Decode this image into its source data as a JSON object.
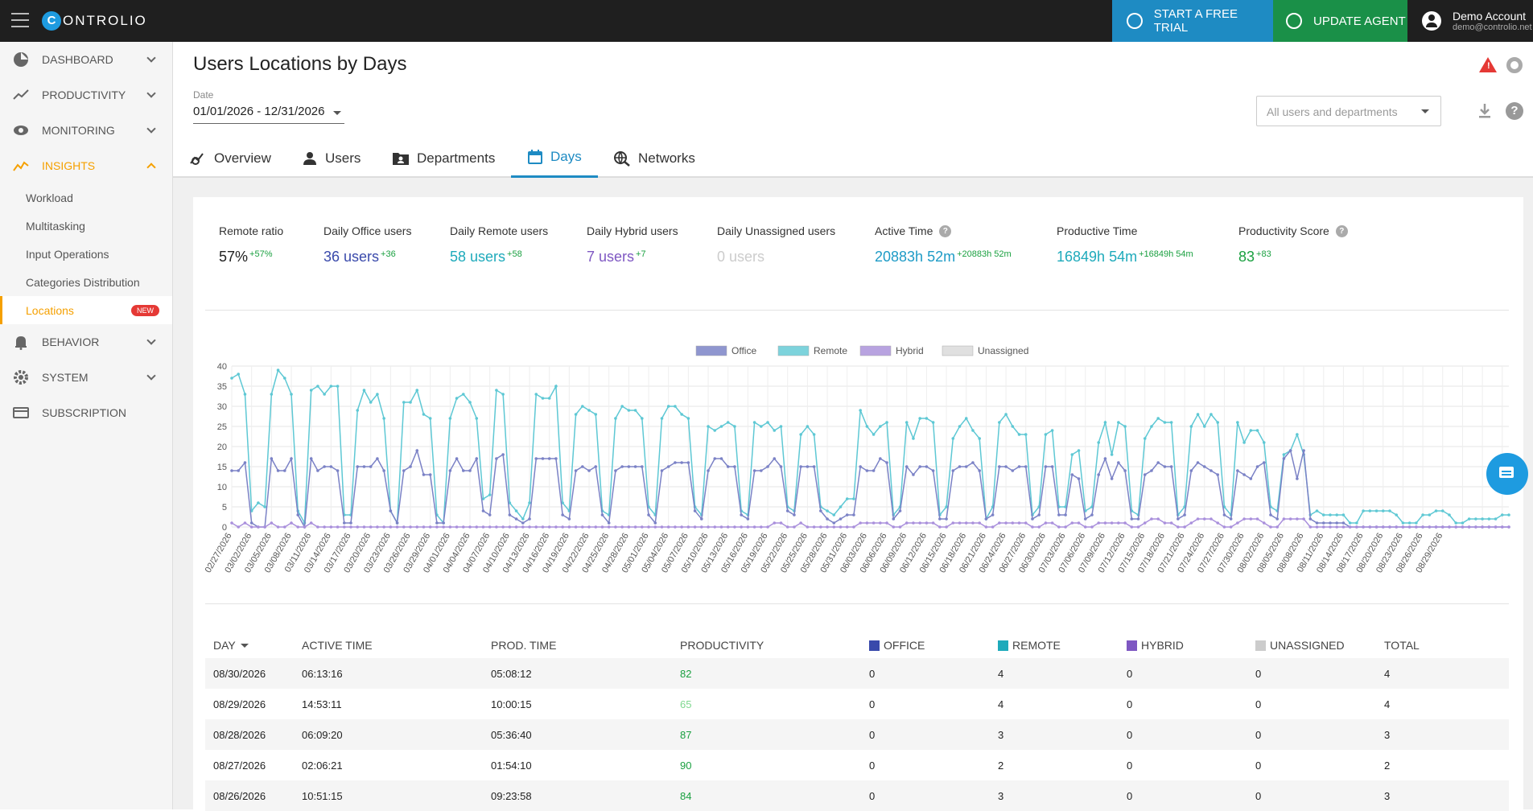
{
  "app": {
    "logo_letter": "C",
    "logo_text": "ONTROLIO"
  },
  "topbar": {
    "trial_label": "START A FREE TRIAL",
    "agent_label": "UPDATE AGENT",
    "account_name": "Demo Account",
    "account_email": "demo@controlio.net"
  },
  "sidebar": {
    "items": [
      {
        "label": "DASHBOARD",
        "icon": "pie-chart-icon"
      },
      {
        "label": "PRODUCTIVITY",
        "icon": "trending-icon"
      },
      {
        "label": "MONITORING",
        "icon": "eye-icon"
      },
      {
        "label": "INSIGHTS",
        "icon": "insights-icon"
      }
    ],
    "insights_sub": [
      "Workload",
      "Multitasking",
      "Input Operations",
      "Categories Distribution",
      "Locations"
    ],
    "new_badge": "NEW",
    "bottom_items": [
      {
        "label": "BEHAVIOR",
        "icon": "bell-icon"
      },
      {
        "label": "SYSTEM",
        "icon": "gear-icon"
      },
      {
        "label": "SUBSCRIPTION",
        "icon": "card-icon"
      }
    ]
  },
  "header": {
    "title": "Users Locations by Days",
    "date_label": "Date",
    "date_value": "01/01/2026 - 12/31/2026",
    "filter_placeholder": "All users and departments"
  },
  "tabs": [
    {
      "label": "Overview",
      "icon": "overview-icon"
    },
    {
      "label": "Users",
      "icon": "user-icon"
    },
    {
      "label": "Departments",
      "icon": "folder-icon"
    },
    {
      "label": "Days",
      "icon": "calendar-icon"
    },
    {
      "label": "Networks",
      "icon": "network-icon"
    }
  ],
  "stats": [
    {
      "label": "Remote ratio",
      "value": "57%",
      "delta": "+57%",
      "color": "#222222"
    },
    {
      "label": "Daily Office users",
      "value": "36 users",
      "delta": "+36",
      "color": "#3949ab"
    },
    {
      "label": "Daily Remote users",
      "value": "58 users",
      "delta": "+58",
      "color": "#1eaabb"
    },
    {
      "label": "Daily Hybrid users",
      "value": "7 users",
      "delta": "+7",
      "color": "#7e57c2"
    },
    {
      "label": "Daily Unassigned users",
      "value": "0 users",
      "delta": "",
      "color": "#cccccc"
    },
    {
      "label": "Active Time",
      "value": "20883h 52m",
      "delta": "+20883h 52m",
      "color": "#1e9bc6"
    },
    {
      "label": "Productive Time",
      "value": "16849h 54m",
      "delta": "+16849h 54m",
      "color": "#1eaabb"
    },
    {
      "label": "Productivity Score",
      "value": "83",
      "delta": "+83",
      "color": "#1aa040"
    }
  ],
  "chart_data": {
    "type": "line",
    "legend": [
      "Office",
      "Remote",
      "Hybrid",
      "Unassigned"
    ],
    "legend_placement": "top-center",
    "colors": {
      "Office": "#8f96cf",
      "Remote": "#7dd3dc",
      "Hybrid": "#b8a3e0",
      "Unassigned": "#e0e0e0"
    },
    "ylim": [
      0,
      40
    ],
    "yticks": [
      0,
      5,
      10,
      15,
      20,
      25,
      30,
      35,
      40
    ],
    "grid": true,
    "xtick_labels": [
      "02/27/2026",
      "03/02/2026",
      "03/05/2026",
      "03/08/2026",
      "03/11/2026",
      "03/14/2026",
      "03/17/2026",
      "03/20/2026",
      "03/23/2026",
      "03/26/2026",
      "03/29/2026",
      "04/01/2026",
      "04/04/2026",
      "04/07/2026",
      "04/10/2026",
      "04/13/2026",
      "04/16/2026",
      "04/19/2026",
      "04/22/2026",
      "04/25/2026",
      "04/28/2026",
      "05/01/2026",
      "05/04/2026",
      "05/07/2026",
      "05/10/2026",
      "05/13/2026",
      "05/16/2026",
      "05/19/2026",
      "05/22/2026",
      "05/25/2026",
      "05/28/2026",
      "05/31/2026",
      "06/03/2026",
      "06/06/2026",
      "06/09/2026",
      "06/12/2026",
      "06/15/2026",
      "06/18/2026",
      "06/21/2026",
      "06/24/2026",
      "06/27/2026",
      "06/30/2026",
      "07/03/2026",
      "07/06/2026",
      "07/09/2026",
      "07/12/2026",
      "07/15/2026",
      "07/18/2026",
      "07/21/2026",
      "07/24/2026",
      "07/27/2026",
      "07/30/2026",
      "08/02/2026",
      "08/05/2026",
      "08/08/2026",
      "08/11/2026",
      "08/14/2026",
      "08/17/2026",
      "08/20/2026",
      "08/23/2026",
      "08/26/2026",
      "08/29/2026"
    ],
    "series": [
      {
        "name": "Remote",
        "values": [
          37,
          38,
          33,
          4,
          6,
          5,
          33,
          39,
          37,
          33,
          4,
          1,
          34,
          35,
          33,
          35,
          35,
          3,
          3,
          29,
          34,
          31,
          33,
          27,
          4,
          1,
          31,
          31,
          34,
          28,
          27,
          3,
          1,
          27,
          32,
          33,
          31,
          27,
          7,
          8,
          34,
          33,
          6,
          4,
          2,
          6,
          33,
          32,
          32,
          35,
          6,
          4,
          28,
          30,
          29,
          28,
          4,
          3,
          27,
          30,
          29,
          29,
          27,
          5,
          3,
          27,
          30,
          30,
          28,
          27,
          5,
          3,
          25,
          24,
          25,
          26,
          25,
          4,
          3,
          26,
          25,
          26,
          24,
          25,
          5,
          4,
          23,
          25,
          23,
          5,
          4,
          3,
          5,
          7,
          7,
          29,
          25,
          23,
          25,
          26,
          3,
          5,
          26,
          22,
          27,
          27,
          26,
          3,
          5,
          22,
          25,
          27,
          24,
          22,
          2,
          5,
          26,
          28,
          25,
          23,
          23,
          3,
          5,
          23,
          24,
          5,
          5,
          18,
          19,
          4,
          5,
          21,
          26,
          18,
          26,
          25,
          4,
          3,
          22,
          25,
          27,
          26,
          26,
          3,
          5,
          25,
          28,
          25,
          28,
          26,
          5,
          3,
          26,
          21,
          24,
          24,
          21,
          5,
          4,
          18,
          19,
          23,
          18,
          3,
          4,
          3,
          3,
          3,
          3,
          1,
          1,
          4,
          4,
          4,
          4,
          4,
          3,
          1,
          1,
          1,
          3,
          3,
          4,
          4,
          3,
          1,
          1,
          2,
          2,
          2,
          2,
          2,
          3,
          3
        ]
      },
      {
        "name": "Office",
        "values": [
          14,
          14,
          16,
          1,
          0,
          0,
          17,
          14,
          14,
          17,
          3,
          0,
          17,
          14,
          15,
          15,
          14,
          1,
          1,
          15,
          15,
          15,
          17,
          14,
          4,
          1,
          14,
          15,
          19,
          13,
          13,
          1,
          1,
          14,
          17,
          14,
          14,
          17,
          4,
          3,
          17,
          18,
          3,
          2,
          1,
          2,
          17,
          17,
          17,
          17,
          3,
          2,
          14,
          15,
          14,
          15,
          3,
          1,
          14,
          15,
          15,
          15,
          15,
          3,
          1,
          14,
          15,
          16,
          16,
          16,
          4,
          2,
          14,
          17,
          17,
          15,
          15,
          3,
          2,
          14,
          14,
          15,
          17,
          15,
          4,
          3,
          15,
          15,
          15,
          4,
          2,
          1,
          2,
          3,
          3,
          15,
          14,
          14,
          17,
          16,
          2,
          4,
          15,
          13,
          15,
          15,
          14,
          2,
          2,
          14,
          15,
          15,
          16,
          14,
          2,
          3,
          15,
          15,
          14,
          15,
          15,
          2,
          3,
          15,
          15,
          3,
          3,
          13,
          12,
          2,
          3,
          13,
          17,
          12,
          16,
          14,
          2,
          2,
          13,
          14,
          16,
          15,
          15,
          2,
          3,
          14,
          16,
          15,
          14,
          13,
          3,
          2,
          14,
          13,
          12,
          15,
          16,
          3,
          2,
          17,
          19,
          12,
          19,
          2,
          1,
          1,
          1,
          1,
          1,
          0,
          0,
          0,
          0,
          0,
          0,
          0,
          0,
          0,
          0,
          0,
          0,
          0,
          0,
          0,
          0,
          0,
          0,
          0,
          0,
          0,
          0,
          0,
          0,
          0
        ]
      },
      {
        "name": "Hybrid",
        "values": [
          1,
          0,
          1,
          0,
          0,
          0,
          1,
          0,
          0,
          1,
          0,
          0,
          1,
          0,
          0,
          0,
          0,
          0,
          0,
          0,
          0,
          0,
          0,
          0,
          0,
          0,
          0,
          0,
          0,
          0,
          0,
          0,
          0,
          0,
          0,
          0,
          0,
          0,
          0,
          0,
          0,
          0,
          0,
          0,
          0,
          0,
          0,
          0,
          0,
          0,
          0,
          0,
          0,
          0,
          0,
          0,
          0,
          0,
          0,
          0,
          0,
          0,
          0,
          0,
          0,
          0,
          0,
          0,
          0,
          0,
          0,
          0,
          0,
          0,
          0,
          0,
          0,
          0,
          0,
          0,
          0,
          0,
          1,
          1,
          0,
          0,
          1,
          0,
          0,
          0,
          0,
          0,
          0,
          0,
          0,
          1,
          1,
          1,
          1,
          1,
          0,
          0,
          1,
          1,
          1,
          1,
          1,
          0,
          0,
          1,
          1,
          1,
          1,
          1,
          0,
          0,
          1,
          1,
          1,
          1,
          1,
          0,
          0,
          1,
          1,
          0,
          0,
          1,
          1,
          0,
          0,
          1,
          1,
          1,
          1,
          1,
          0,
          0,
          1,
          2,
          2,
          1,
          1,
          0,
          0,
          1,
          2,
          2,
          2,
          1,
          0,
          0,
          1,
          2,
          2,
          2,
          1,
          0,
          0,
          2,
          2,
          2,
          2,
          0,
          0,
          0,
          0,
          0,
          0,
          0,
          0,
          0,
          0,
          0,
          0,
          0,
          0,
          0,
          0,
          0,
          0,
          0,
          0,
          0,
          0,
          0,
          0,
          0,
          0,
          0,
          0,
          0,
          0,
          0
        ]
      },
      {
        "name": "Unassigned",
        "values": []
      }
    ]
  },
  "table": {
    "columns": [
      {
        "label": "DAY",
        "sort": "desc"
      },
      {
        "label": "ACTIVE TIME"
      },
      {
        "label": "PROD. TIME"
      },
      {
        "label": "PRODUCTIVITY"
      },
      {
        "label": "OFFICE",
        "swatch": "#3949ab"
      },
      {
        "label": "REMOTE",
        "swatch": "#1eaabb"
      },
      {
        "label": "HYBRID",
        "swatch": "#7e57c2"
      },
      {
        "label": "UNASSIGNED",
        "swatch": "#cccccc"
      },
      {
        "label": "TOTAL"
      }
    ],
    "rows": [
      {
        "day": "08/30/2026",
        "active": "06:13:16",
        "prod": "05:08:12",
        "productivity": "82",
        "prod_color": "#1aa040",
        "office": "0",
        "remote": "4",
        "hybrid": "0",
        "unassigned": "0",
        "total": "4"
      },
      {
        "day": "08/29/2026",
        "active": "14:53:11",
        "prod": "10:00:15",
        "productivity": "65",
        "prod_color": "#7fd88f",
        "office": "0",
        "remote": "4",
        "hybrid": "0",
        "unassigned": "0",
        "total": "4"
      },
      {
        "day": "08/28/2026",
        "active": "06:09:20",
        "prod": "05:36:40",
        "productivity": "87",
        "prod_color": "#1aa040",
        "office": "0",
        "remote": "3",
        "hybrid": "0",
        "unassigned": "0",
        "total": "3"
      },
      {
        "day": "08/27/2026",
        "active": "02:06:21",
        "prod": "01:54:10",
        "productivity": "90",
        "prod_color": "#1aa040",
        "office": "0",
        "remote": "2",
        "hybrid": "0",
        "unassigned": "0",
        "total": "2"
      },
      {
        "day": "08/26/2026",
        "active": "10:51:15",
        "prod": "09:23:58",
        "productivity": "84",
        "prod_color": "#1aa040",
        "office": "0",
        "remote": "3",
        "hybrid": "0",
        "unassigned": "0",
        "total": "3"
      }
    ]
  }
}
